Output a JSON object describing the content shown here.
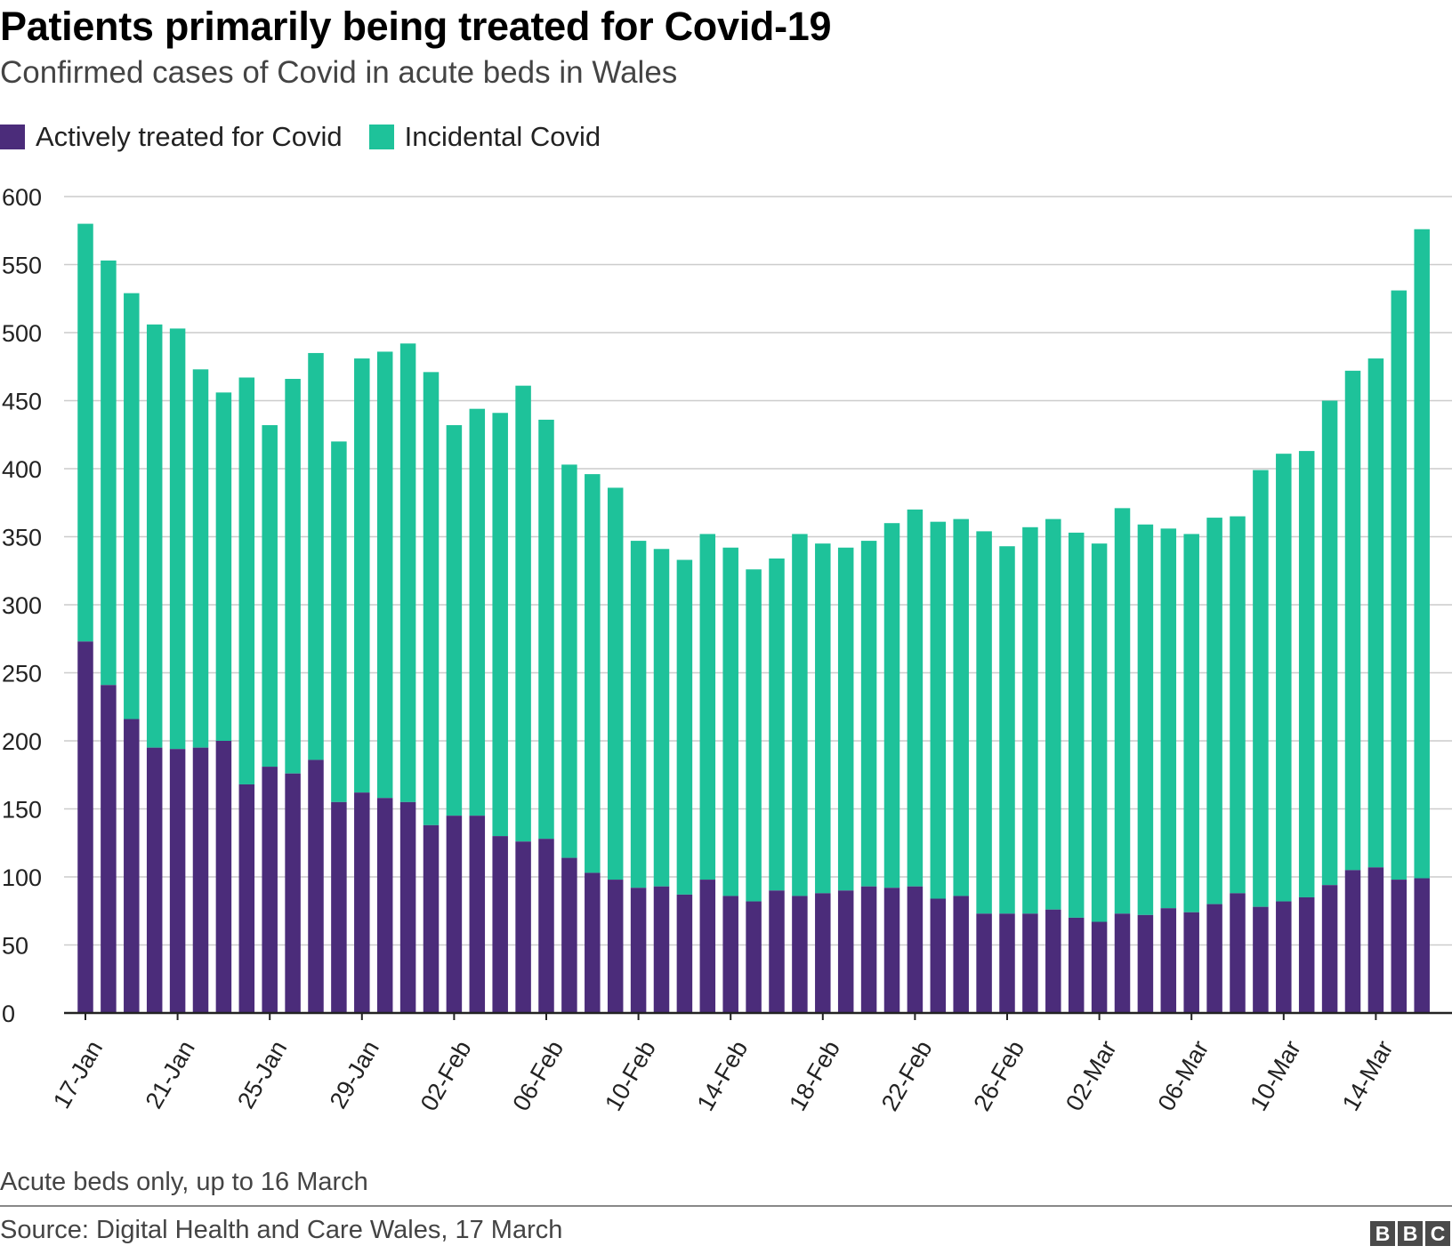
{
  "header": {
    "title": "Patients primarily being treated for Covid-19",
    "subtitle": "Confirmed cases of Covid in acute beds in Wales"
  },
  "legend": {
    "items": [
      {
        "label": "Actively treated for Covid",
        "color": "#4b2c7a"
      },
      {
        "label": "Incidental Covid",
        "color": "#1ec29a"
      }
    ]
  },
  "footer": {
    "note": "Acute beds only, up to 16 March",
    "source": "Source: Digital Health and Care Wales, 17 March",
    "logo": [
      "B",
      "B",
      "C"
    ]
  },
  "chart_data": {
    "type": "bar",
    "stacked": true,
    "title": "Patients primarily being treated for Covid-19",
    "subtitle": "Confirmed cases of Covid in acute beds in Wales",
    "xlabel": "",
    "ylabel": "",
    "ylim": [
      0,
      600
    ],
    "yticks": [
      0,
      50,
      100,
      150,
      200,
      250,
      300,
      350,
      400,
      450,
      500,
      550,
      600
    ],
    "grid": true,
    "legend_position": "top-left",
    "categories": [
      "17-Jan",
      "18-Jan",
      "19-Jan",
      "20-Jan",
      "21-Jan",
      "22-Jan",
      "23-Jan",
      "24-Jan",
      "25-Jan",
      "26-Jan",
      "27-Jan",
      "28-Jan",
      "29-Jan",
      "30-Jan",
      "31-Jan",
      "01-Feb",
      "02-Feb",
      "03-Feb",
      "04-Feb",
      "05-Feb",
      "06-Feb",
      "07-Feb",
      "08-Feb",
      "09-Feb",
      "10-Feb",
      "11-Feb",
      "12-Feb",
      "13-Feb",
      "14-Feb",
      "15-Feb",
      "16-Feb",
      "17-Feb",
      "18-Feb",
      "19-Feb",
      "20-Feb",
      "21-Feb",
      "22-Feb",
      "23-Feb",
      "24-Feb",
      "25-Feb",
      "26-Feb",
      "27-Feb",
      "28-Feb",
      "01-Mar",
      "02-Mar",
      "03-Mar",
      "04-Mar",
      "05-Mar",
      "06-Mar",
      "07-Mar",
      "08-Mar",
      "09-Mar",
      "10-Mar",
      "11-Mar",
      "12-Mar",
      "13-Mar",
      "14-Mar",
      "15-Mar",
      "16-Mar"
    ],
    "xtick_labels": [
      "17-Jan",
      "21-Jan",
      "25-Jan",
      "29-Jan",
      "02-Feb",
      "06-Feb",
      "10-Feb",
      "14-Feb",
      "18-Feb",
      "22-Feb",
      "26-Feb",
      "02-Mar",
      "06-Mar",
      "10-Mar",
      "14-Mar"
    ],
    "series": [
      {
        "name": "Actively treated for Covid",
        "color": "#4b2c7a",
        "values": [
          273,
          241,
          216,
          195,
          194,
          195,
          200,
          168,
          181,
          176,
          186,
          155,
          162,
          158,
          155,
          138,
          145,
          145,
          130,
          126,
          128,
          114,
          103,
          98,
          92,
          93,
          87,
          98,
          86,
          82,
          90,
          86,
          88,
          90,
          93,
          92,
          93,
          84,
          86,
          73,
          73,
          73,
          76,
          70,
          67,
          73,
          72,
          77,
          74,
          80,
          88,
          78,
          82,
          85,
          94,
          105,
          107,
          98,
          99
        ]
      },
      {
        "name": "Incidental Covid",
        "color": "#1ec29a",
        "values": [
          307,
          312,
          313,
          311,
          309,
          278,
          256,
          299,
          251,
          290,
          299,
          265,
          319,
          328,
          337,
          333,
          287,
          299,
          311,
          335,
          308,
          289,
          293,
          288,
          255,
          248,
          246,
          254,
          256,
          244,
          244,
          266,
          257,
          252,
          254,
          268,
          277,
          277,
          277,
          281,
          270,
          284,
          287,
          283,
          278,
          298,
          287,
          279,
          278,
          284,
          277,
          321,
          329,
          328,
          356,
          367,
          374,
          433,
          477
        ]
      }
    ]
  }
}
